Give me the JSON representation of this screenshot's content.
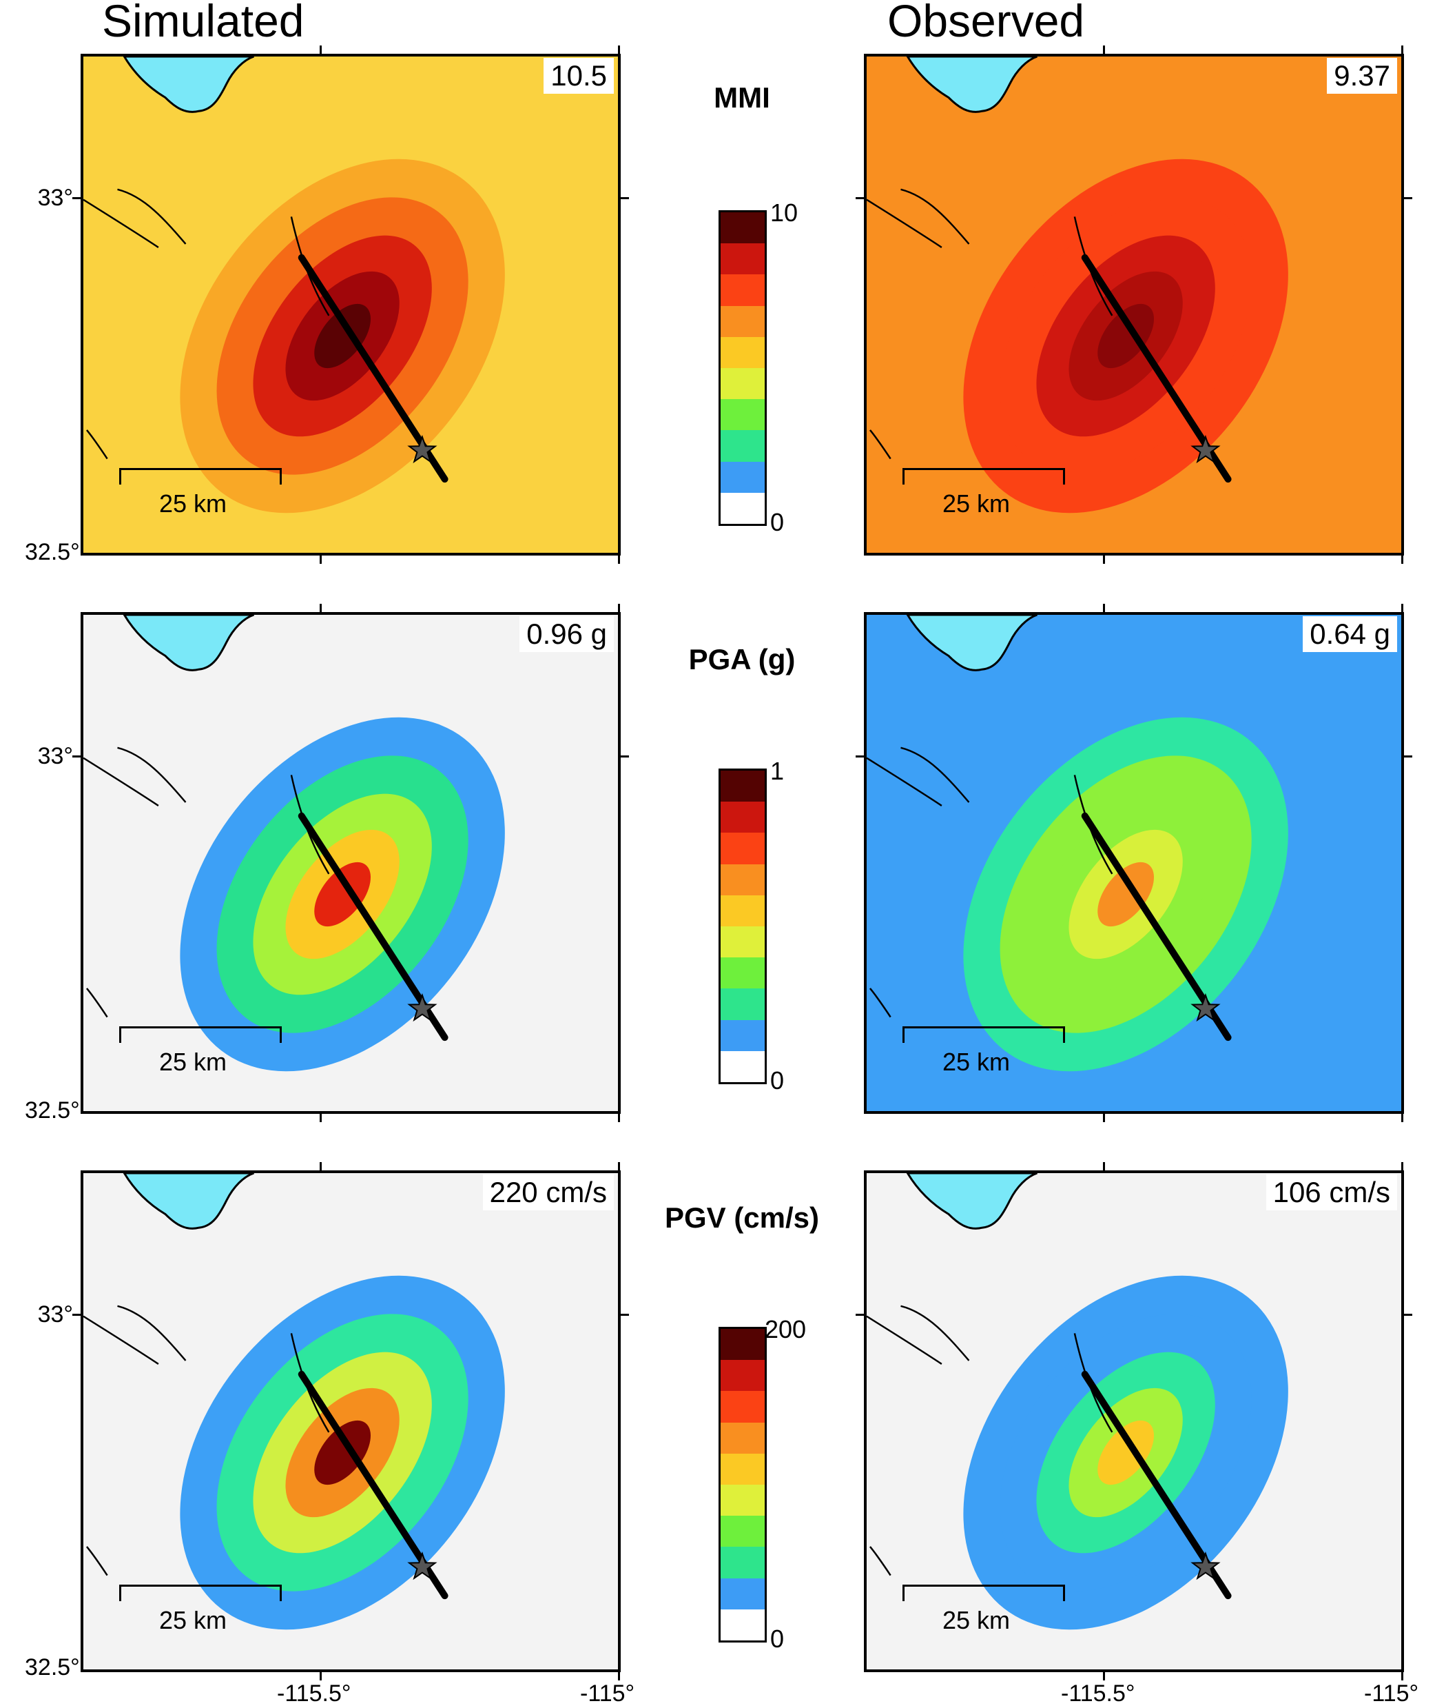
{
  "column_titles": {
    "simulated": "Simulated",
    "observed": "Observed"
  },
  "panels": [
    {
      "row": "mmi",
      "side": "simulated",
      "max_label": "10.5",
      "bg": "#fad240",
      "levels": [
        "#f9a826",
        "#f56a16",
        "#d8200e",
        "#a0060a",
        "#5a0204"
      ]
    },
    {
      "row": "mmi",
      "side": "observed",
      "max_label": "9.37",
      "bg": "#f98f20",
      "levels": [
        "#fb4214",
        "#fb4214",
        "#d01810",
        "#b00e0a",
        "#8a0608"
      ]
    },
    {
      "row": "pga",
      "side": "simulated",
      "max_label": "0.96 g",
      "bg": "#f3f3f3",
      "levels": [
        "#3da0f6",
        "#28e08e",
        "#a6f23a",
        "#fbc924",
        "#e4240e"
      ]
    },
    {
      "row": "pga",
      "side": "observed",
      "max_label": "0.64 g",
      "bg": "#3da0f6",
      "levels": [
        "#2ee6a2",
        "#8ef03a",
        "#8ef03a",
        "#d8f03a",
        "#f78f22"
      ]
    },
    {
      "row": "pgv",
      "side": "simulated",
      "max_label": "220 cm/s",
      "bg": "#f3f3f3",
      "levels": [
        "#3da0f6",
        "#2ee69e",
        "#d0f042",
        "#f58e1e",
        "#7a0404"
      ]
    },
    {
      "row": "pgv",
      "side": "observed",
      "max_label": "106 cm/s",
      "bg": "#f3f3f3",
      "levels": [
        "#3da0f6",
        "#3da0f6",
        "#2ee69e",
        "#a6f23a",
        "#fbc924"
      ]
    }
  ],
  "rows": [
    {
      "title": "MMI",
      "cbar_max": "10",
      "cbar_min": "0"
    },
    {
      "title": "PGA (g)",
      "cbar_max": "1",
      "cbar_min": "0"
    },
    {
      "title": "PGV (cm/s)",
      "cbar_max": "200",
      "cbar_min": "0"
    }
  ],
  "colorbar_colors": [
    "#ffffff",
    "#3d9cf5",
    "#2ee48c",
    "#6ef03c",
    "#dff03a",
    "#fbc924",
    "#f98f20",
    "#fb4214",
    "#cc160e",
    "#540302"
  ],
  "scale_bar": "25 km",
  "y_ticks": [
    "33°",
    "32.5°"
  ],
  "x_ticks": [
    "-115.5°",
    "-115°"
  ],
  "ocean_color": "#7ae8f8"
}
